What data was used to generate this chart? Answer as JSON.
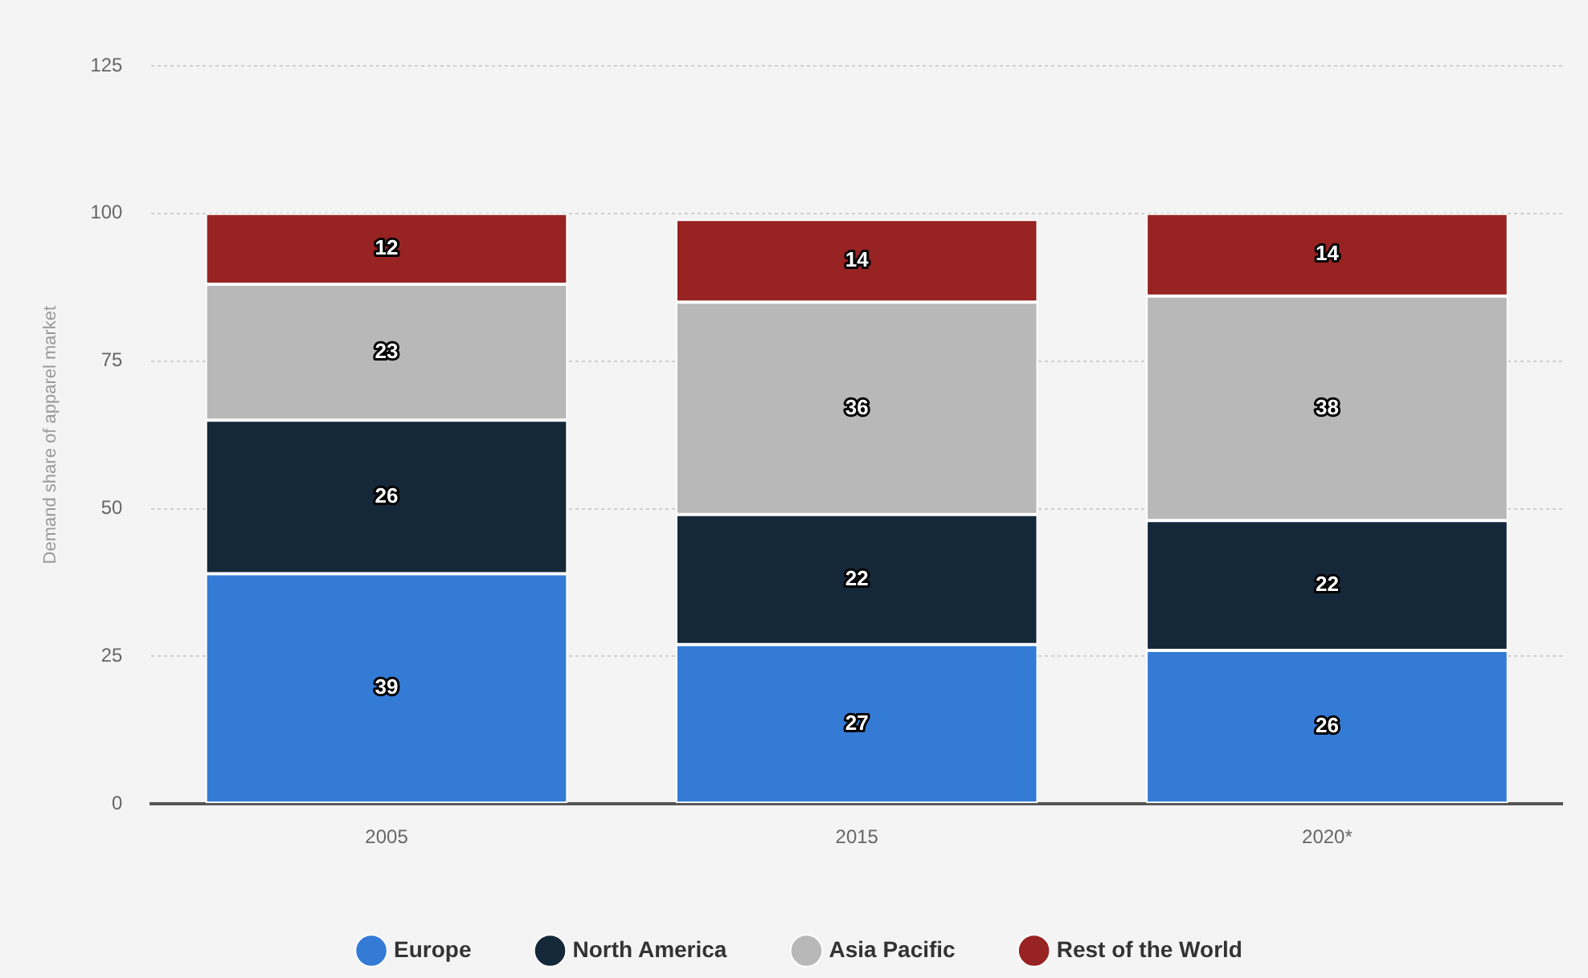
{
  "chart_data": {
    "type": "bar",
    "stacked": true,
    "ylabel": "Demand share of apparel market",
    "categories": [
      "2005",
      "2015",
      "2020*"
    ],
    "series": [
      {
        "name": "Europe",
        "color": "#347bd6",
        "values": [
          39,
          27,
          26
        ]
      },
      {
        "name": "North America",
        "color": "#15283a",
        "values": [
          26,
          22,
          22
        ]
      },
      {
        "name": "Asia Pacific",
        "color": "#b8b8b8",
        "values": [
          23,
          36,
          38
        ]
      },
      {
        "name": "Rest of the World",
        "color": "#972322",
        "values": [
          12,
          14,
          14
        ]
      }
    ],
    "ylim": [
      0,
      125
    ],
    "yticks": [
      0,
      25,
      50,
      75,
      100,
      125
    ],
    "grid": "y",
    "legend": "bottom",
    "marker": "circle",
    "data_labels": true
  }
}
